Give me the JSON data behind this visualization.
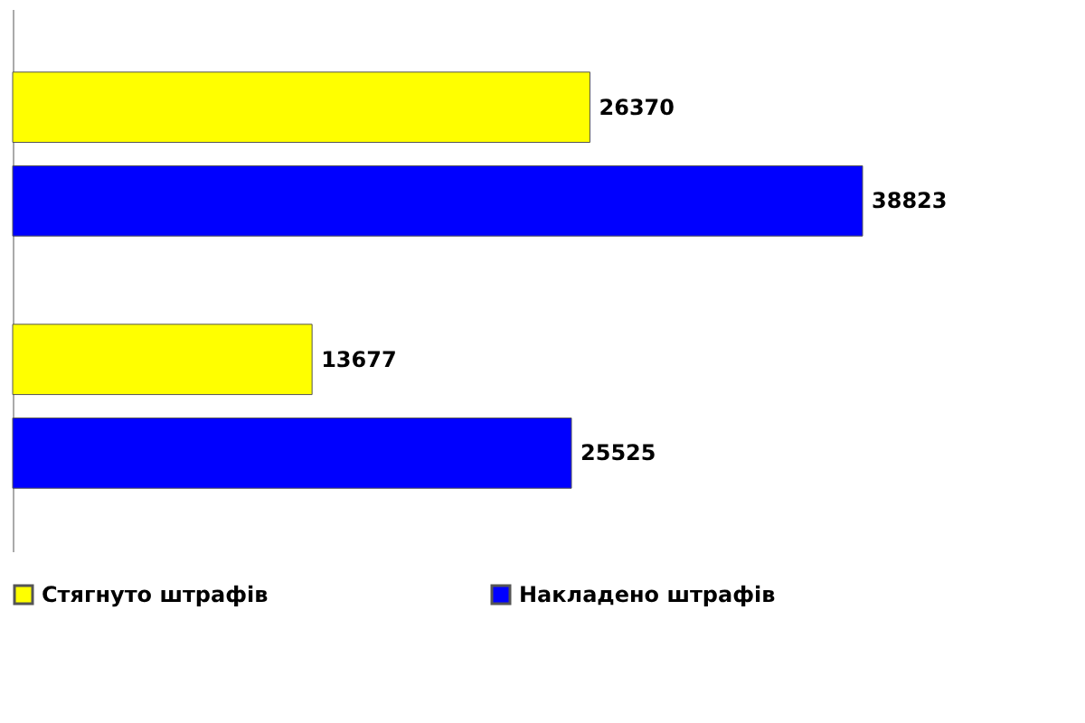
{
  "chart_data": {
    "type": "bar",
    "orientation": "horizontal",
    "categories": [
      null,
      null
    ],
    "series": [
      {
        "name": "Стягнуто штрафів",
        "color": "#ffff00",
        "values": [
          26370,
          13677
        ]
      },
      {
        "name": "Накладено штрафів",
        "color": "#0000ff",
        "values": [
          38823,
          25525
        ]
      }
    ],
    "data_labels": true,
    "legend": "bottom"
  }
}
